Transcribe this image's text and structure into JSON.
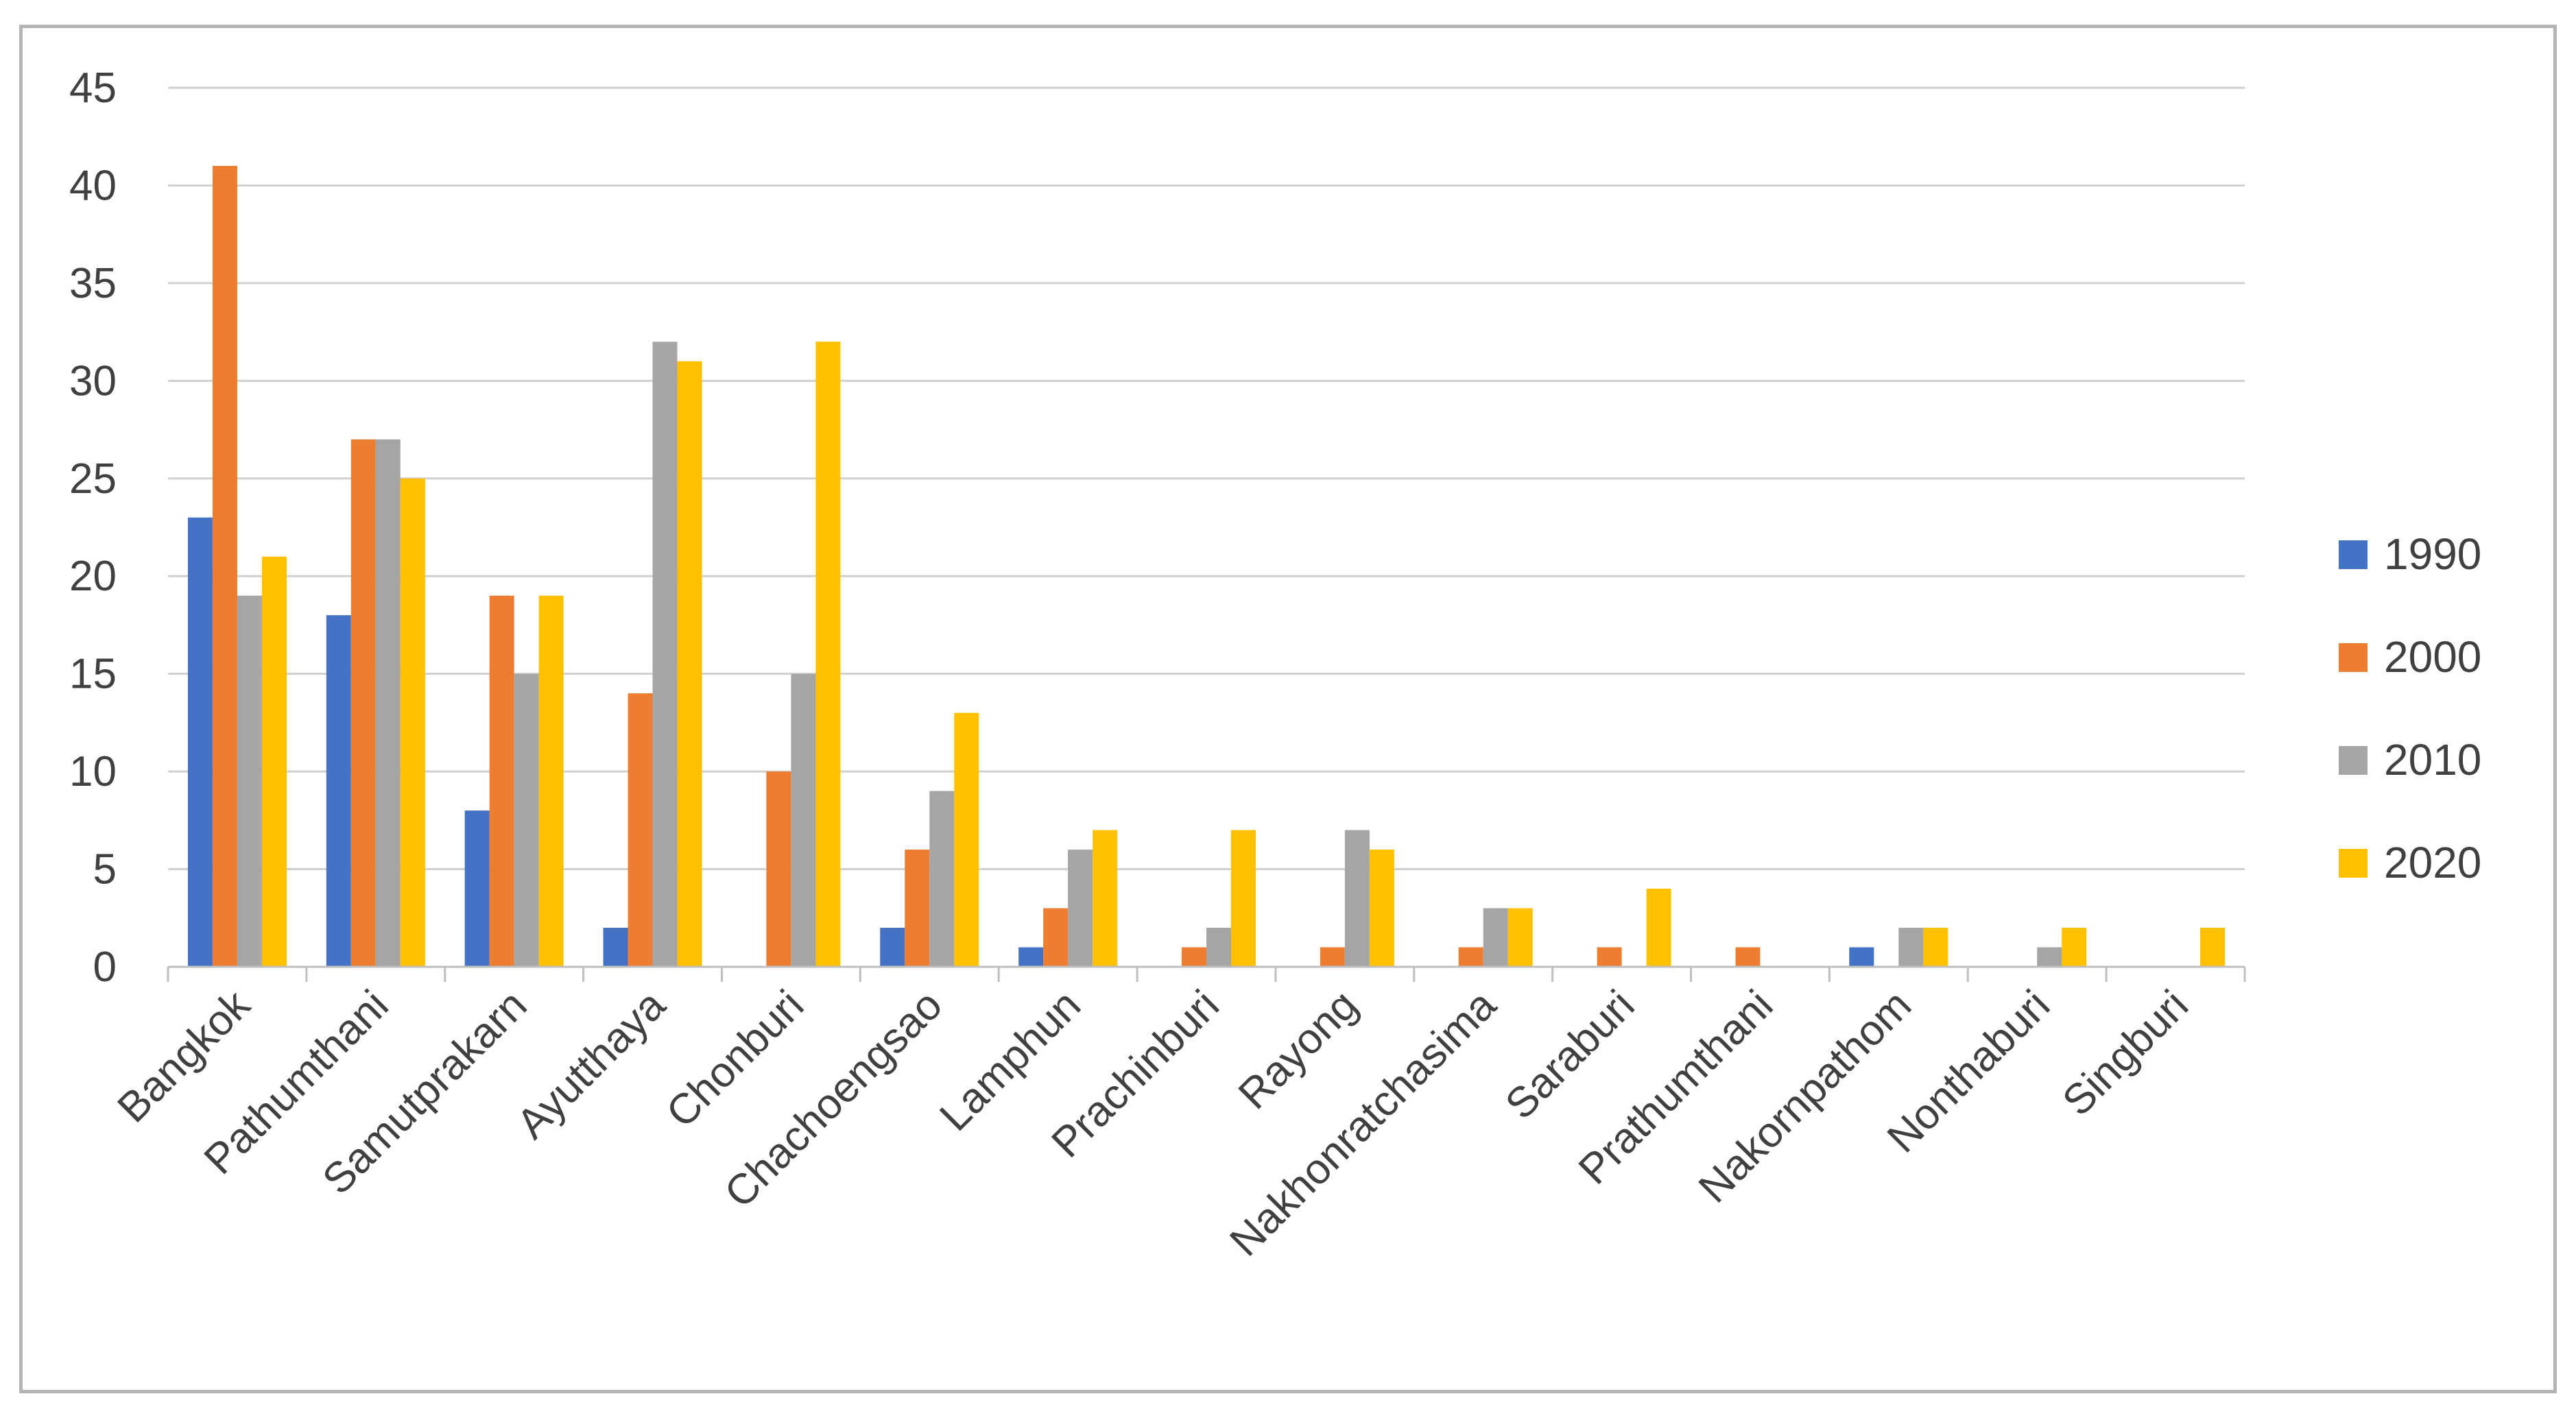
{
  "chart_data": {
    "type": "bar",
    "title": "",
    "xlabel": "",
    "ylabel": "",
    "ylim": [
      0,
      45
    ],
    "yticks": [
      0,
      5,
      10,
      15,
      20,
      25,
      30,
      35,
      40,
      45
    ],
    "grid": true,
    "legend_position": "right",
    "categories": [
      "Bangkok",
      "Pathumthani",
      "Samutprakarn",
      "Ayutthaya",
      "Chonburi",
      "Chachoengsao",
      "Lamphun",
      "Prachinburi",
      "Rayong",
      "Nakhonratchasima",
      "Saraburi",
      "Prathumthani",
      "Nakornpathom",
      "Nonthaburi",
      "Singburi"
    ],
    "series": [
      {
        "name": "1990",
        "color": "#4472C4",
        "values": [
          23,
          18,
          8,
          2,
          0,
          2,
          1,
          0,
          0,
          0,
          0,
          0,
          1,
          0,
          0
        ]
      },
      {
        "name": "2000",
        "color": "#ED7D31",
        "values": [
          41,
          27,
          19,
          14,
          10,
          6,
          3,
          1,
          1,
          1,
          1,
          1,
          0,
          0,
          0
        ]
      },
      {
        "name": "2010",
        "color": "#A5A5A5",
        "values": [
          19,
          27,
          15,
          32,
          15,
          9,
          6,
          2,
          7,
          3,
          0,
          0,
          2,
          1,
          0
        ]
      },
      {
        "name": "2020",
        "color": "#FFC000",
        "values": [
          21,
          25,
          19,
          31,
          32,
          13,
          7,
          7,
          6,
          3,
          4,
          0,
          2,
          2,
          2
        ]
      }
    ]
  }
}
